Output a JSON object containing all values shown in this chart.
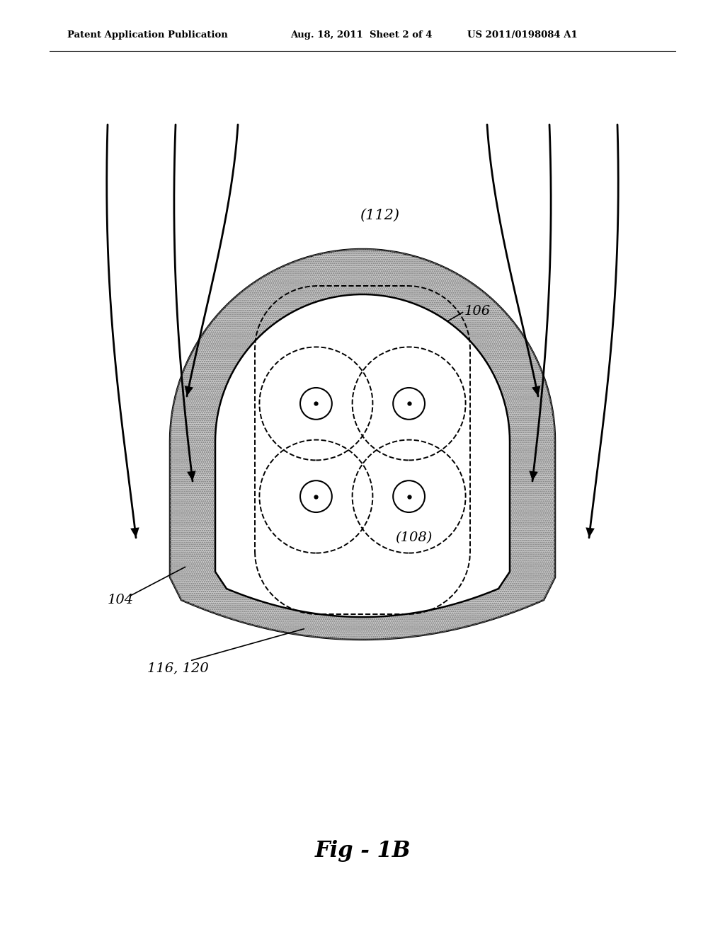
{
  "bg_color": "#ffffff",
  "header_left": "Patent Application Publication",
  "header_center": "Aug. 18, 2011  Sheet 2 of 4",
  "header_right": "US 2011/0198084 A1",
  "fig_label": "Fig - 1B",
  "label_112": "(112)",
  "label_106": "106",
  "label_108": "(108)",
  "label_104": "104",
  "label_116_120": "116, 120",
  "hatch_color": "#aaaaaa",
  "barrier_fill": "#c8c8c8",
  "line_color": "#000000"
}
